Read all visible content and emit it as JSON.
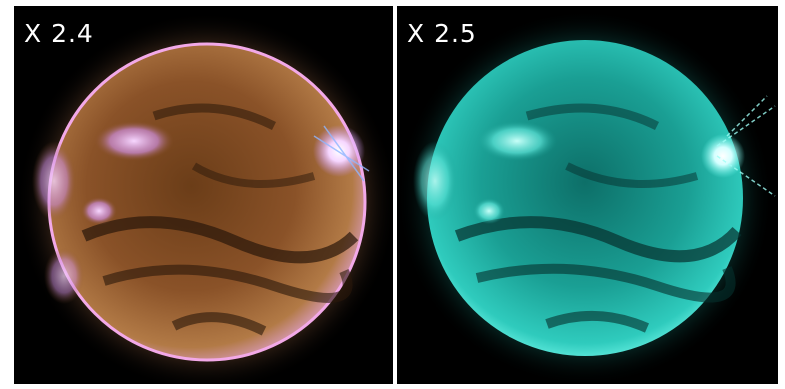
{
  "panels": [
    {
      "label": "X 2.4",
      "theme": "orange-violet",
      "colors": {
        "disk": "#a86a34",
        "dark": "#2a170a",
        "rim": "#ff9cf0",
        "glow": "#f3a4ff"
      }
    },
    {
      "label": "X 2.5",
      "theme": "cyan",
      "colors": {
        "disk": "#1fbfb0",
        "dark": "#05302d",
        "rim": "#6ffff2",
        "glow": "#aefcff"
      }
    }
  ],
  "colors": {
    "background": "#000000",
    "frame": "#ffffff"
  }
}
